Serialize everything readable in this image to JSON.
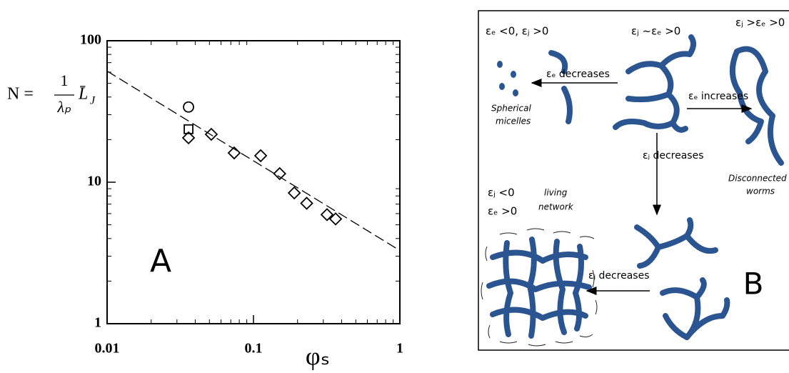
{
  "chart_data": {
    "type": "scatter",
    "panel_label": "A",
    "x_label": "φₛ",
    "y_label": {
      "lhs": "N =",
      "numerator": "1",
      "denominator": "λₚ",
      "rhs": "L̄",
      "rhs_sub": "J"
    },
    "xlim": [
      0.01,
      1
    ],
    "ylim": [
      1,
      100
    ],
    "xticks": [
      0.01,
      0.1,
      1
    ],
    "yticks": [
      1,
      10,
      100
    ],
    "xscale": "log",
    "yscale": "log",
    "color": "#000000",
    "series": [
      {
        "marker": "circle",
        "x": [
          0.036
        ],
        "values": [
          34
        ]
      },
      {
        "marker": "square",
        "x": [
          0.036
        ],
        "values": [
          23.7
        ]
      },
      {
        "marker": "diamond",
        "x": [
          0.036,
          0.0515,
          0.0738,
          0.112,
          0.151,
          0.19,
          0.231,
          0.318,
          0.364
        ],
        "values": [
          20.6,
          21.8,
          16.1,
          15.4,
          11.5,
          8.4,
          7.1,
          5.9,
          5.5
        ]
      },
      {
        "marker": "dashed-line",
        "x": [
          0.01,
          0.95
        ],
        "values": [
          61,
          3.4
        ]
      }
    ]
  },
  "diagram": {
    "label": "B",
    "texts": [
      "εₑ <0, εⱼ >0",
      "εⱼ ~εₑ >0",
      "εⱼ >εₑ >0",
      "εₑ decreases",
      "Spherical",
      "micelles",
      "εₑ increases",
      "εⱼ decreases",
      "Disconnected",
      "worms",
      "εⱼ <0",
      "εₑ >0",
      "living",
      "network",
      "εⱼ decreases"
    ]
  }
}
